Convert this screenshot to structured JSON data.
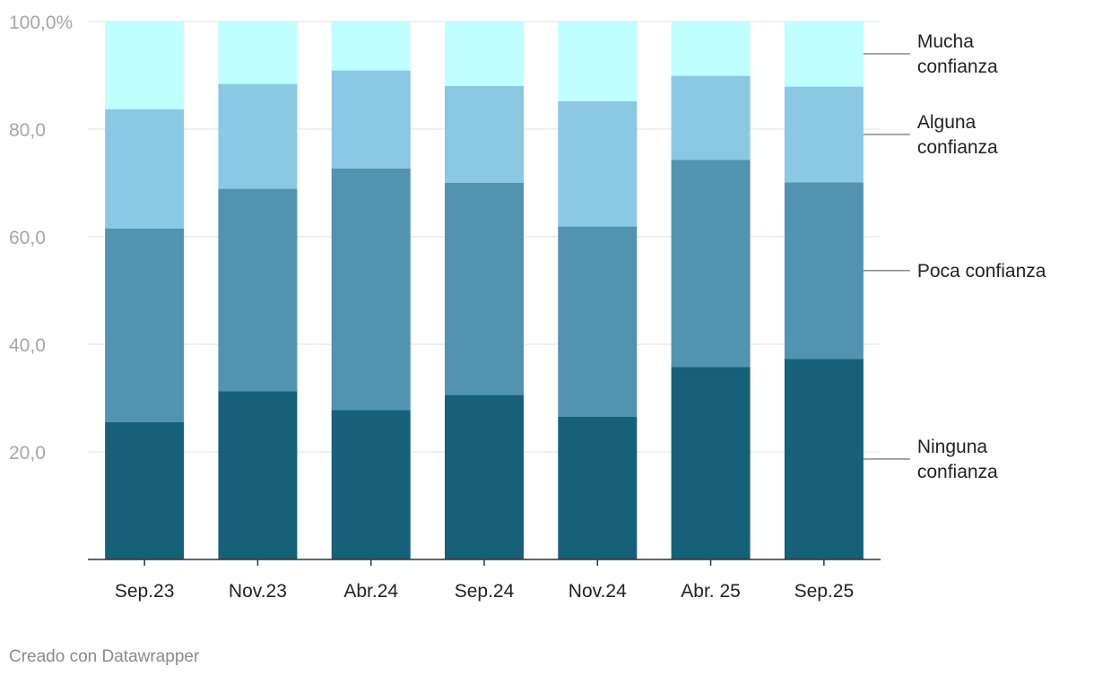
{
  "chart_data": {
    "type": "bar",
    "stacked": true,
    "categories": [
      "Sep.23",
      "Nov.23",
      "Abr.24",
      "Sep.24",
      "Nov.24",
      "Abr. 25",
      "Sep.25"
    ],
    "series": [
      {
        "name": "Ninguna confianza",
        "label_lines": [
          "Ninguna",
          "confianza"
        ],
        "color": "#16607a",
        "values": [
          25.5,
          31.3,
          27.8,
          30.6,
          26.5,
          35.8,
          37.3
        ]
      },
      {
        "name": "Poca confianza",
        "label_lines": [
          "Poca confianza"
        ],
        "color": "#5193b1",
        "values": [
          36.0,
          37.6,
          44.9,
          39.4,
          35.4,
          38.5,
          32.8
        ]
      },
      {
        "name": "Alguna confianza",
        "label_lines": [
          "Alguna",
          "confianza"
        ],
        "color": "#8ac8e4",
        "values": [
          22.2,
          19.5,
          18.2,
          18.0,
          23.3,
          15.6,
          17.8
        ]
      },
      {
        "name": "Mucha confianza",
        "label_lines": [
          "Mucha",
          "confianza"
        ],
        "color": "#bffffd",
        "values": [
          16.3,
          11.6,
          9.1,
          12.0,
          14.8,
          10.1,
          12.1
        ]
      }
    ],
    "ylim": [
      0,
      100
    ],
    "yticks": [
      {
        "value": 20,
        "label": "20,0"
      },
      {
        "value": 40,
        "label": "40,0"
      },
      {
        "value": 60,
        "label": "60,0"
      },
      {
        "value": 80,
        "label": "80,0"
      },
      {
        "value": 100,
        "label": "100,0%"
      }
    ],
    "grid": true,
    "legend": "right, inline labels"
  },
  "footer": {
    "credit": "Creado con Datawrapper"
  }
}
